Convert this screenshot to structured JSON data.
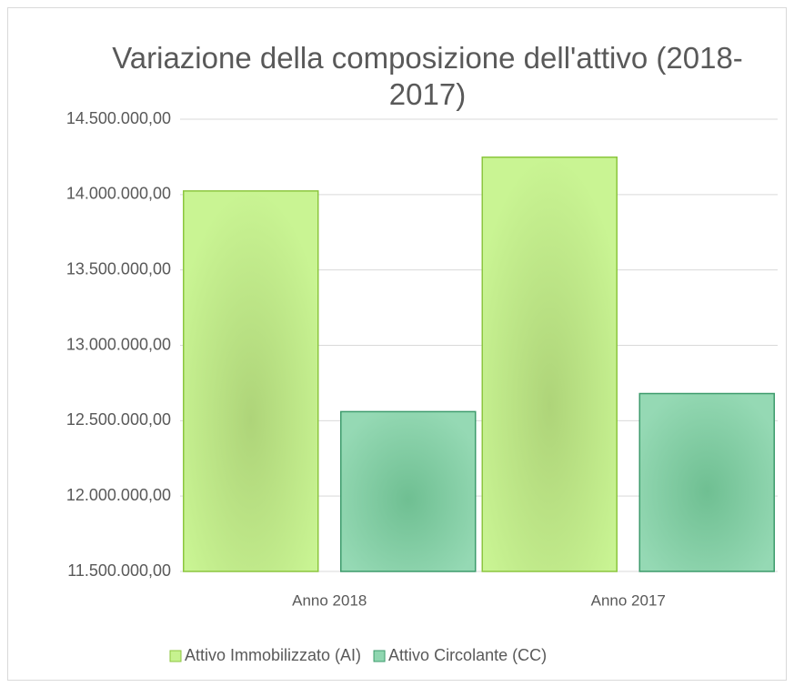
{
  "chart_data": {
    "type": "bar",
    "title": "Variazione della composizione dell'attivo (2018-2017)",
    "categories": [
      "Anno 2018",
      "Anno 2017"
    ],
    "series": [
      {
        "name": "Attivo Immobilizzato (AI)",
        "color": "#c6f28f",
        "values": [
          14024000,
          14248000
        ]
      },
      {
        "name": "Attivo Circolante (CC)",
        "color": "#8fd6b0",
        "values": [
          12560000,
          12680000
        ]
      }
    ],
    "ylim": [
      11500000,
      14500000
    ],
    "yticks": [
      {
        "value": 11500000,
        "label": "11.500.000,00"
      },
      {
        "value": 12000000,
        "label": "12.000.000,00"
      },
      {
        "value": 12500000,
        "label": "12.500.000,00"
      },
      {
        "value": 13000000,
        "label": "13.000.000,00"
      },
      {
        "value": 13500000,
        "label": "13.500.000,00"
      },
      {
        "value": 14000000,
        "label": "14.000.000,00"
      },
      {
        "value": 14500000,
        "label": "14.500.000,00"
      }
    ],
    "grid": true,
    "legend": "bottom"
  }
}
